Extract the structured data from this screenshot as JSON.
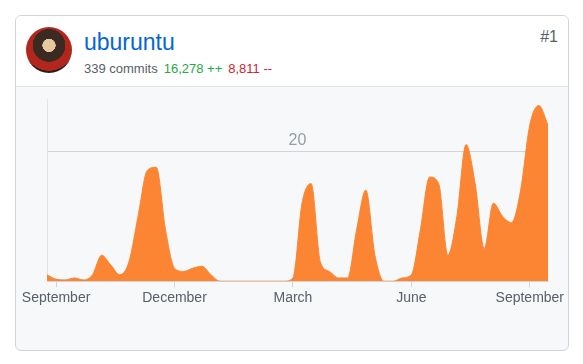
{
  "card": {
    "user": "uburuntu",
    "commits": "339 commits",
    "additions": "16,278 ++",
    "deletions": "8,811 --",
    "rank": "#1"
  },
  "chart_data": {
    "type": "area",
    "categories": [
      null,
      "September",
      null,
      null,
      null,
      null,
      null,
      null,
      null,
      null,
      null,
      null,
      null,
      null,
      "December",
      null,
      null,
      null,
      null,
      null,
      null,
      null,
      null,
      null,
      null,
      null,
      null,
      "March",
      null,
      null,
      null,
      null,
      null,
      null,
      null,
      null,
      null,
      null,
      null,
      null,
      "June",
      null,
      null,
      null,
      null,
      null,
      null,
      null,
      null,
      null,
      null,
      null,
      null,
      "September",
      null,
      null
    ],
    "values": [
      1,
      0.3,
      0.2,
      0.5,
      0.2,
      1,
      4,
      2.5,
      1,
      3,
      10,
      17,
      17.5,
      8,
      2,
      1.5,
      2,
      2.3,
      1,
      0,
      0,
      0,
      0,
      0,
      0,
      0,
      0,
      0.5,
      12,
      15,
      3,
      1.5,
      0.5,
      0.5,
      8,
      14,
      4,
      0,
      0,
      0.5,
      1,
      8,
      16,
      15,
      4,
      10,
      21,
      15,
      5,
      12,
      10,
      9,
      14,
      24,
      27,
      24
    ],
    "color": "#fb8532",
    "ylim": [
      0,
      28
    ],
    "yticks": [
      20
    ],
    "grid": true
  }
}
